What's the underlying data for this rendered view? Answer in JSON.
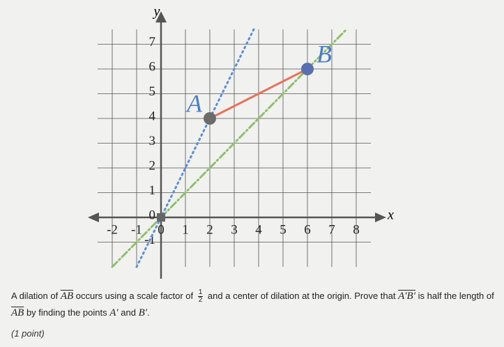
{
  "graph": {
    "x_label": "x",
    "y_label": "y",
    "xlim": [
      -2.6,
      8.6
    ],
    "ylim": [
      -2,
      7.6
    ],
    "xticks": [
      -2,
      -1,
      0,
      1,
      2,
      3,
      4,
      5,
      6,
      7,
      8
    ],
    "yticks": [
      -1,
      0,
      1,
      2,
      3,
      4,
      5,
      6,
      7
    ],
    "grid": true,
    "points": [
      {
        "label": "A",
        "x": 2,
        "y": 4,
        "color": "#6b6b6b"
      },
      {
        "label": "B",
        "x": 6,
        "y": 6,
        "color": "#5a6fb0"
      }
    ],
    "segment_color": "#e8715a",
    "ray_colors": [
      "#5b8fd6",
      "#8fbf6a"
    ]
  },
  "question": {
    "segments": [
      {
        "text": "A dilation of "
      },
      {
        "text": "AB",
        "overline": true,
        "math": true
      },
      {
        "text": " occurs using a scale factor of "
      },
      {
        "numerator": "1",
        "denominator": "2"
      },
      {
        "text": " and a center of dilation at the origin. Prove that "
      },
      {
        "text": "A′B′",
        "overline": true,
        "math": true
      },
      {
        "text": " is half the length of "
      },
      {
        "text": "AB",
        "overline": true,
        "math": true
      },
      {
        "text": " by finding the points "
      },
      {
        "text": "A′",
        "math": true
      },
      {
        "text": " and "
      },
      {
        "text": "B′",
        "math": true
      },
      {
        "text": "."
      }
    ],
    "note": "(1 point)"
  }
}
